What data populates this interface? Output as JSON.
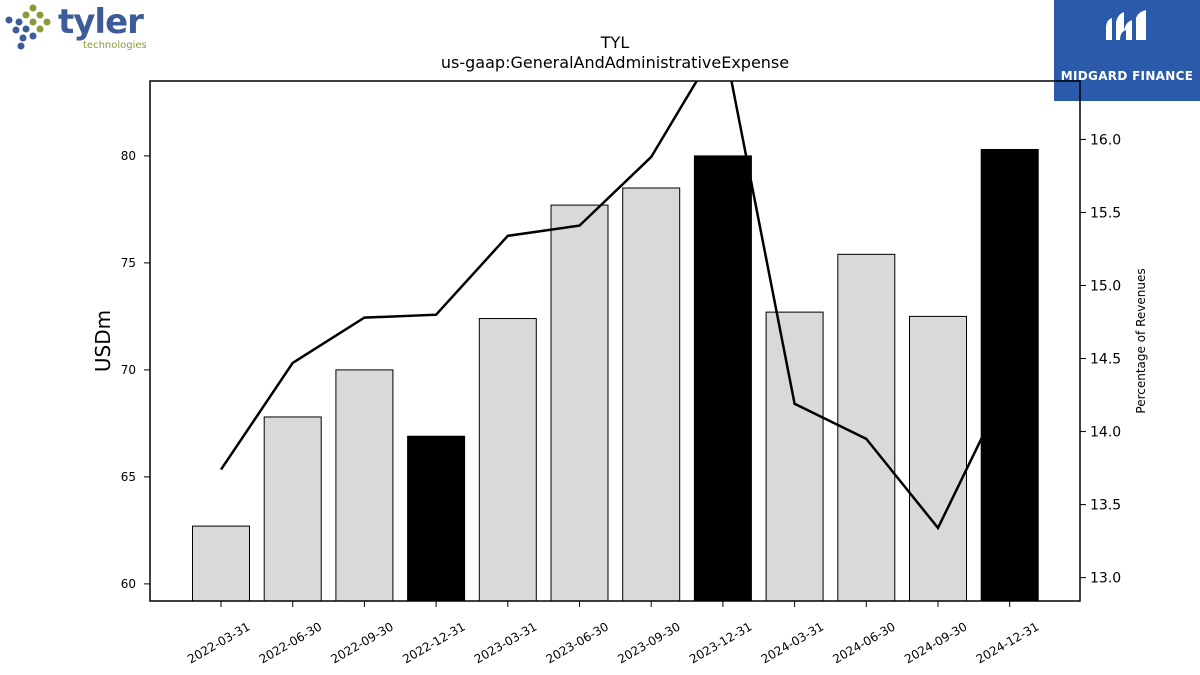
{
  "header": {
    "title": "TYL",
    "subtitle": "us-gaap:GeneralAndAdministrativeExpense"
  },
  "logos": {
    "left": {
      "word": "tyler",
      "sub": "technologies",
      "icon": "tyler-dots-icon",
      "colors": {
        "blue": "#3d5a99",
        "green": "#8a9a3a"
      }
    },
    "right": {
      "name": "MIDGARD FINANCE",
      "icon": "midgard-logo-icon",
      "background": "#2b5aab"
    }
  },
  "chart_data": {
    "type": "bar",
    "title": "TYL",
    "subtitle": "us-gaap:GeneralAndAdministrativeExpense",
    "categories": [
      "2022-03-31",
      "2022-06-30",
      "2022-09-30",
      "2022-12-31",
      "2023-03-31",
      "2023-06-30",
      "2023-09-30",
      "2023-12-31",
      "2024-03-31",
      "2024-06-30",
      "2024-09-30",
      "2024-12-31"
    ],
    "series": [
      {
        "axis": "left",
        "type": "bar",
        "values": [
          62.7,
          67.8,
          70.0,
          66.9,
          72.4,
          77.7,
          78.5,
          80.0,
          72.7,
          75.4,
          72.5,
          80.3
        ],
        "colors": [
          "#d9d9d9",
          "#d9d9d9",
          "#d9d9d9",
          "#000000",
          "#d9d9d9",
          "#d9d9d9",
          "#d9d9d9",
          "#000000",
          "#d9d9d9",
          "#d9d9d9",
          "#d9d9d9",
          "#000000"
        ]
      },
      {
        "axis": "right",
        "type": "line",
        "values": [
          13.74,
          14.47,
          14.78,
          14.8,
          15.34,
          15.41,
          15.88,
          16.7,
          14.19,
          13.95,
          13.34,
          14.35
        ],
        "color": "#000000"
      }
    ],
    "ylabel": "USDm",
    "ylim": [
      59.2,
      83.5
    ],
    "yticks": [
      60,
      65,
      70,
      75,
      80
    ],
    "y2label": "Percentage of Revenues",
    "y2lim": [
      12.84,
      16.4
    ],
    "y2ticks": [
      "13.0",
      "13.5",
      "14.0",
      "14.5",
      "15.0",
      "15.5",
      "16.0"
    ],
    "y2tick_values": [
      13.0,
      13.5,
      14.0,
      14.5,
      15.0,
      15.5,
      16.0
    ],
    "grid": false
  }
}
